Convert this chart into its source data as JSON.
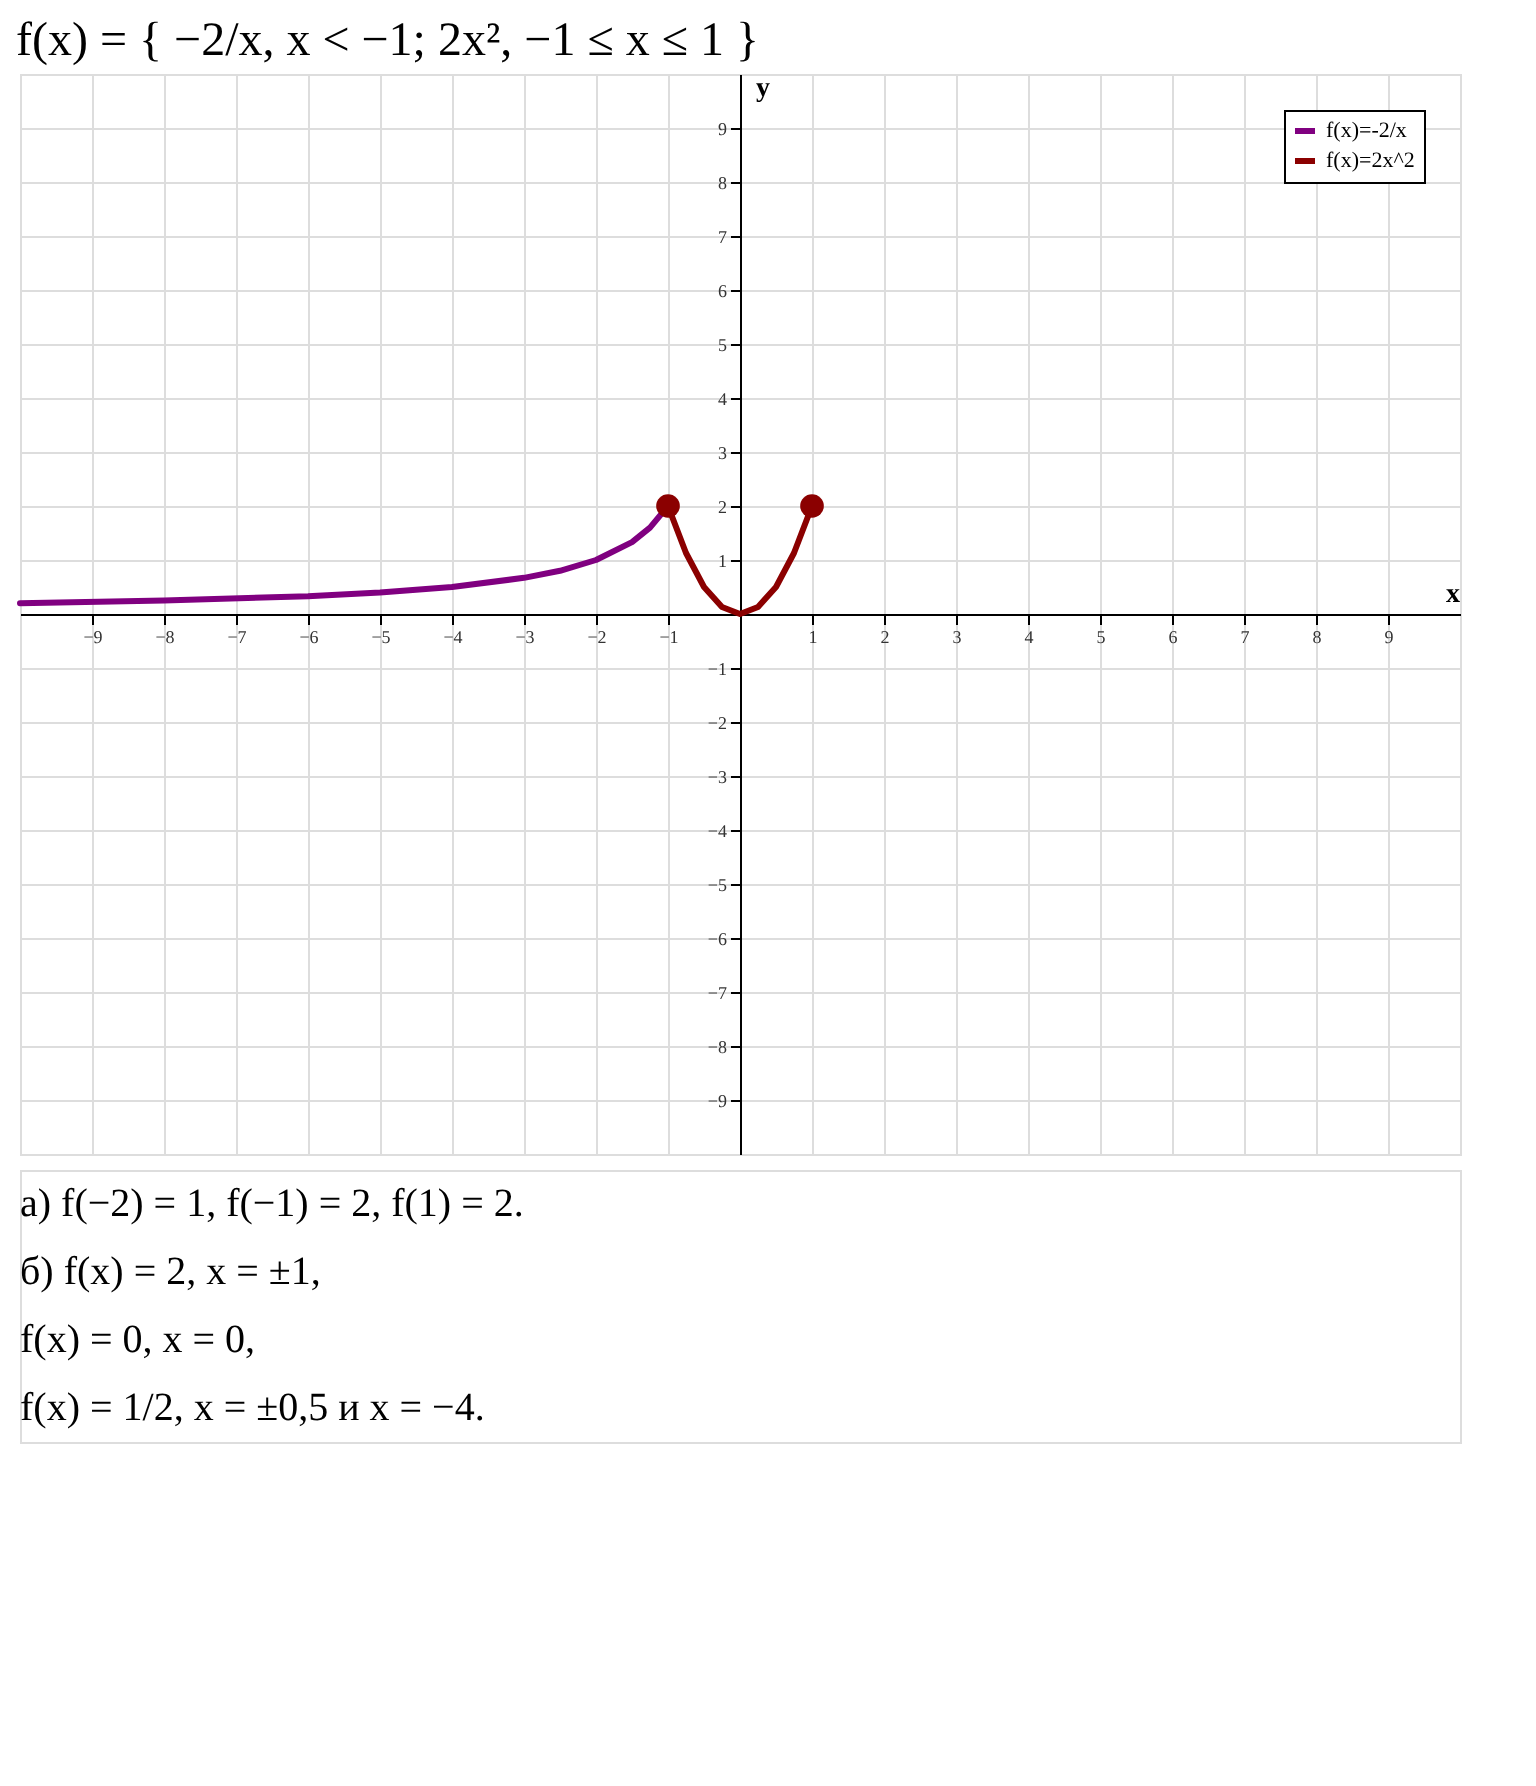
{
  "chart_data": {
    "type": "line",
    "title": "f(x) = { −2/x, x < −1;  2x², −1 ≤ x ≤ 1 }",
    "xlabel": "x",
    "ylabel": "y",
    "xlim": [
      -10,
      10
    ],
    "ylim": [
      -10,
      10
    ],
    "xticks": [
      -9,
      -8,
      -7,
      -6,
      -5,
      -4,
      -3,
      -2,
      -1,
      1,
      2,
      3,
      4,
      5,
      6,
      7,
      8,
      9
    ],
    "yticks": [
      -9,
      -8,
      -7,
      -6,
      -5,
      -4,
      -3,
      -2,
      -1,
      1,
      2,
      3,
      4,
      5,
      6,
      7,
      8,
      9
    ],
    "grid": true,
    "legend": "top right",
    "line_style": "solid",
    "series": [
      {
        "name": "f(x)=-2/x",
        "color": "#800080",
        "x": [
          -10,
          -8,
          -6,
          -5,
          -4,
          -3,
          -2.5,
          -2,
          -1.5,
          -1.25,
          -1
        ],
        "values": [
          0.2,
          0.25,
          0.33,
          0.4,
          0.5,
          0.67,
          0.8,
          1,
          1.33,
          1.6,
          2
        ]
      },
      {
        "name": "f(x)=2x^2",
        "color": "#8b0000",
        "x": [
          -1,
          -0.75,
          -0.5,
          -0.25,
          0,
          0.25,
          0.5,
          0.75,
          1
        ],
        "values": [
          2,
          1.13,
          0.5,
          0.13,
          0,
          0.13,
          0.5,
          1.13,
          2
        ]
      },
      {
        "type": "scatter",
        "color": "#8b0000",
        "x": [
          -1,
          1
        ],
        "values": [
          2,
          2
        ]
      }
    ],
    "annotations": [
      "а) f(−2) = 1,     f(−1) = 2,     f(1) = 2.",
      "б) f(x) = 2,     x = ±1,",
      "f(x) = 0,     x = 0,",
      "f(x) = 1/2,     x = ±0,5 и x = −4."
    ]
  }
}
